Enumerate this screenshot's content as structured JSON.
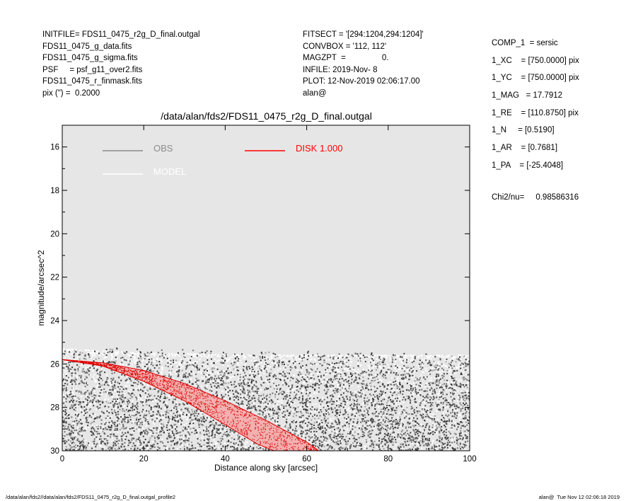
{
  "header": {
    "left_lines": [
      "INITFILE= FDS11_0475_r2g_D_final.outgal",
      "FDS11_0475_g_data.fits",
      "FDS11_0475_g_sigma.fits",
      "PSF     = psf_g11_over2.fits",
      "FDS11_0475_r_finmask.fits",
      "pix (\") =  0.2000"
    ],
    "mid_lines": [
      "FITSECT = '[294:1204,294:1204]'",
      "CONVBOX = '112, 112'",
      "MAGZPT  =                0.",
      "INFILE: 2019-Nov- 8",
      "PLOT: 12-Nov-2019 02:06:17.00",
      "alan@"
    ],
    "right_lines": [
      "COMP_1  = sersic",
      "1_XC    = [750.0000] pix",
      "1_YC    = [750.0000] pix",
      "1_MAG   = 17.7912",
      "1_RE    = [110.8750] pix",
      "1_N     = [0.5190]",
      "1_AR    = [0.7681]",
      "1_PA    = [-25.4048]"
    ],
    "chi2": "Chi2/nu=     0.98586316"
  },
  "footer": {
    "left": "/data/alan/fds2//data/alan/fds2/FDS11_0475_r2g_D_final.outgal_profile2",
    "right": "alan@  Tue Nov 12 02:06:18 2019"
  },
  "chart_data": {
    "type": "scatter",
    "title": "/data/alan/fds2/FDS11_0475_r2g_D_final.outgal",
    "xlabel": "Distance along sky [arcsec]",
    "ylabel": "magnitude/arcsec^2",
    "xlim": [
      0,
      100
    ],
    "ylim": [
      30,
      15
    ],
    "xticks": [
      0,
      20,
      40,
      60,
      80,
      100
    ],
    "yticks": [
      16,
      18,
      20,
      22,
      24,
      26,
      28,
      30
    ],
    "background": "#e6e6e6",
    "legend": {
      "placement": "top",
      "entries": [
        {
          "label": "OBS",
          "color": "#8c8c8c"
        },
        {
          "label": "MODEL",
          "color": "#ffffff"
        },
        {
          "label": "DISK  1.000",
          "color": "#ff0000"
        }
      ]
    },
    "series": [
      {
        "name": "OBS",
        "color": "#555555",
        "description_points": {
          "x_range": [
            0,
            100
          ],
          "y_range": [
            25.2,
            30.0
          ]
        },
        "band": [
          [
            0,
            25.2,
            30.0
          ],
          [
            20,
            25.3,
            30.0
          ],
          [
            40,
            25.4,
            30.0
          ],
          [
            60,
            25.4,
            30.0
          ],
          [
            80,
            25.5,
            30.0
          ],
          [
            100,
            25.6,
            30.0
          ]
        ]
      },
      {
        "name": "MODEL",
        "color": "#ffffff",
        "band": [
          [
            0,
            25.3,
            30.0
          ],
          [
            20,
            25.5,
            30.0
          ],
          [
            50,
            25.6,
            30.0
          ],
          [
            100,
            25.6,
            30.0
          ]
        ]
      },
      {
        "name": "DISK  1.000",
        "color": "#e00000",
        "upper": [
          [
            0,
            25.8
          ],
          [
            10,
            25.95
          ],
          [
            20,
            26.3
          ],
          [
            30,
            26.9
          ],
          [
            40,
            27.7
          ],
          [
            50,
            28.6
          ],
          [
            60,
            29.6
          ],
          [
            63,
            30.0
          ]
        ],
        "lower": [
          [
            0,
            25.8
          ],
          [
            10,
            26.1
          ],
          [
            20,
            26.8
          ],
          [
            30,
            27.7
          ],
          [
            40,
            28.8
          ],
          [
            48,
            29.7
          ],
          [
            52,
            30.0
          ]
        ]
      }
    ]
  }
}
